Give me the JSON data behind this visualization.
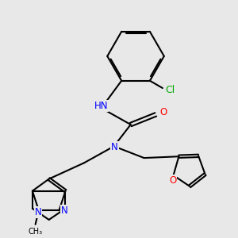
{
  "bg_color": "#e8e8e8",
  "bond_color": "#000000",
  "bond_width": 1.5,
  "atom_colors": {
    "N": "#0000ff",
    "O": "#ff0000",
    "Cl": "#00aa00",
    "C": "#000000",
    "H": "#4499aa"
  },
  "font_size": 8.5
}
